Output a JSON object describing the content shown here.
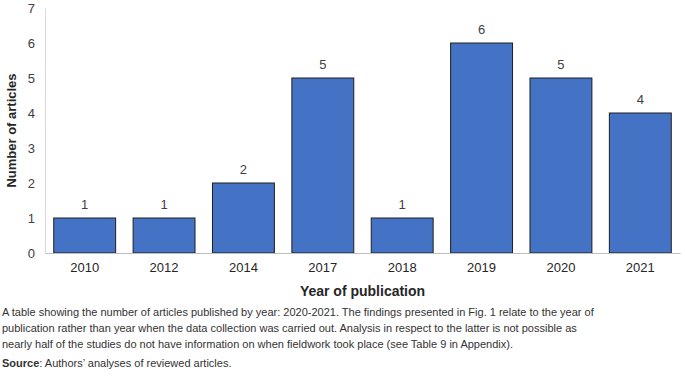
{
  "chart_data": {
    "type": "bar",
    "categories": [
      "2010",
      "2012",
      "2014",
      "2017",
      "2018",
      "2019",
      "2020",
      "2021"
    ],
    "values": [
      1,
      1,
      2,
      5,
      1,
      6,
      5,
      4
    ],
    "color": "#4472c4",
    "ylim": [
      0,
      7
    ],
    "yticks": [
      0,
      1,
      2,
      3,
      4,
      5,
      6,
      7
    ],
    "grid": false,
    "data_labels": true,
    "x_label": "Year of publication",
    "y_label": "Number of articles",
    "annotations": [
      "A table showing the number of articles published by year: 2020-2021. The findings presented in Fig. 1 relate to the year of",
      "publication rather than year when the data collection was carried out.  Analysis in respect to the latter is not possible as",
      "nearly half of the studies do not have information on when fieldwork took place (see Table 9 in Appendix)."
    ],
    "source": {
      "label": "Source",
      "text": ": Authors’ analyses of reviewed articles."
    }
  }
}
